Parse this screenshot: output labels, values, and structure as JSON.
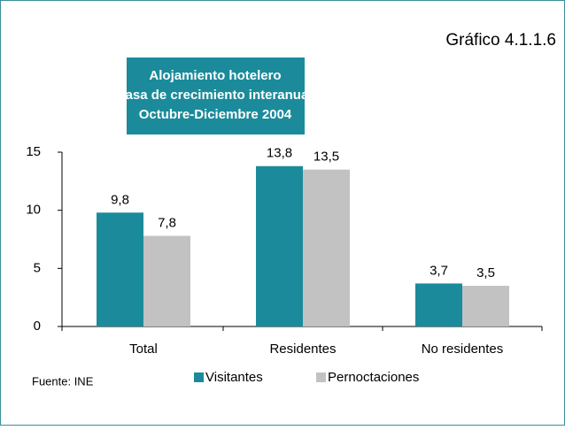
{
  "chart_data": {
    "type": "bar",
    "label": "Gráfico 4.1.1.6",
    "title": [
      "Alojamiento hotelero",
      "Tasa de crecimiento interanual",
      "Octubre-Diciembre 2004"
    ],
    "source": "Fuente: INE",
    "categories": [
      "Total",
      "Residentes",
      "No residentes"
    ],
    "series": [
      {
        "name": "Visitantes",
        "color": "#1b8b9b",
        "values": [
          9.8,
          13.8,
          3.7
        ],
        "value_labels": [
          "9,8",
          "13,8",
          "3,7"
        ]
      },
      {
        "name": "Pernoctaciones",
        "color": "#c2c2c2",
        "values": [
          7.8,
          13.5,
          3.5
        ],
        "value_labels": [
          "7,8",
          "13,5",
          "3,5"
        ]
      }
    ],
    "ylim": [
      0,
      15
    ],
    "yticks": [
      0,
      5,
      10,
      15
    ],
    "grid": false,
    "legend": "bottom"
  }
}
